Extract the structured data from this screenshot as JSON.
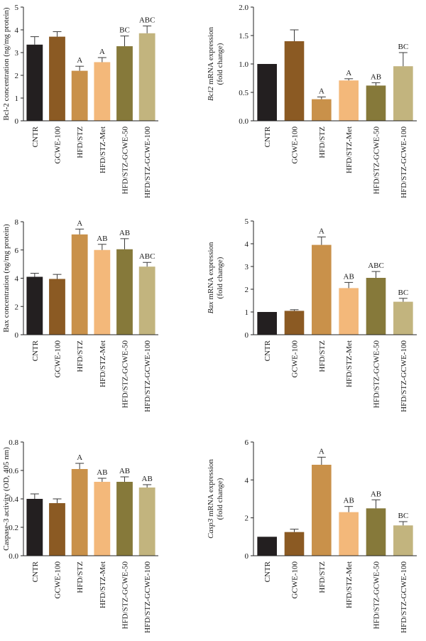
{
  "colors": [
    "#231f20",
    "#8b5a23",
    "#c9914a",
    "#f3b87a",
    "#86793a",
    "#c2b47e"
  ],
  "categories": [
    "CNTR",
    "GCWE-100",
    "HFD/STZ",
    "HFD/STZ-Met",
    "HFD/STZ-GCWE-50",
    "HFD/STZ-GCWE-100"
  ],
  "chart_data": [
    {
      "type": "bar",
      "ylabel": "Bcl-2 concentration (ng/mg protein)",
      "ylim": [
        0,
        5
      ],
      "yticks": [
        "0",
        "1",
        "2",
        "3",
        "4",
        "5"
      ],
      "values": [
        3.35,
        3.7,
        2.2,
        2.58,
        3.28,
        3.85
      ],
      "errors": [
        0.35,
        0.22,
        0.2,
        0.2,
        0.45,
        0.32
      ],
      "labels": [
        "",
        "",
        "A",
        "A",
        "BC",
        "ABC"
      ]
    },
    {
      "type": "bar",
      "ylabel_italic": "Bcl2",
      "ylabel": "mRNA expression",
      "ylabel2": "(fold change)",
      "ylim": [
        0,
        2
      ],
      "yticks": [
        "0.0",
        "0.5",
        "1.0",
        "1.5",
        "2.0"
      ],
      "values": [
        1.0,
        1.4,
        0.38,
        0.71,
        0.62,
        0.96
      ],
      "errors": [
        0.0,
        0.2,
        0.04,
        0.03,
        0.05,
        0.24
      ],
      "labels": [
        "",
        "",
        "A",
        "A",
        "AB",
        "BC"
      ]
    },
    {
      "type": "bar",
      "ylabel": "Bax concentration (ng/mg protein)",
      "ylim": [
        0,
        8
      ],
      "yticks": [
        "0",
        "2",
        "4",
        "6",
        "8"
      ],
      "values": [
        4.1,
        3.95,
        7.1,
        6.0,
        6.05,
        4.82
      ],
      "errors": [
        0.25,
        0.32,
        0.38,
        0.4,
        0.75,
        0.3
      ],
      "labels": [
        "",
        "",
        "A",
        "AB",
        "AB",
        "ABC"
      ]
    },
    {
      "type": "bar",
      "ylabel_italic": "Bax",
      "ylabel": "mRNA expression",
      "ylabel2": "(fold change)",
      "ylim": [
        0,
        5
      ],
      "yticks": [
        "0",
        "1",
        "2",
        "3",
        "4",
        "5"
      ],
      "values": [
        1.0,
        1.05,
        3.95,
        2.05,
        2.5,
        1.45
      ],
      "errors": [
        0.0,
        0.05,
        0.35,
        0.25,
        0.28,
        0.15
      ],
      "labels": [
        "",
        "",
        "A",
        "AB",
        "ABC",
        "BC"
      ]
    },
    {
      "type": "bar",
      "ylabel": "Caspase-3 activity (OD, 405 nm)",
      "ylim": [
        0,
        0.8
      ],
      "yticks": [
        "0.0",
        "0.2",
        "0.4",
        "0.6",
        "0.8"
      ],
      "values": [
        0.4,
        0.37,
        0.61,
        0.52,
        0.52,
        0.48
      ],
      "errors": [
        0.035,
        0.03,
        0.04,
        0.025,
        0.035,
        0.02
      ],
      "labels": [
        "",
        "",
        "A",
        "AB",
        "AB",
        "AB"
      ]
    },
    {
      "type": "bar",
      "ylabel_italic": "Casp3",
      "ylabel": "mRNA expression",
      "ylabel2": "(fold change)",
      "ylim": [
        0,
        6
      ],
      "yticks": [
        "0",
        "2",
        "4",
        "6"
      ],
      "values": [
        1.0,
        1.25,
        4.8,
        2.3,
        2.5,
        1.6
      ],
      "errors": [
        0.0,
        0.15,
        0.4,
        0.3,
        0.45,
        0.2
      ],
      "labels": [
        "",
        "",
        "A",
        "AB",
        "AB",
        "BC"
      ]
    }
  ]
}
